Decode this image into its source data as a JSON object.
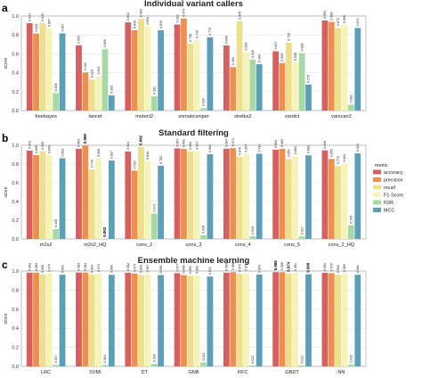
{
  "legend": {
    "title": "metric",
    "entries": [
      {
        "label": "accuracy",
        "color": "#d65f5f"
      },
      {
        "label": "precision",
        "color": "#ee8f4e"
      },
      {
        "label": "recall",
        "color": "#eedf8c"
      },
      {
        "label": "F1-Score",
        "color": "#f4f3b8"
      },
      {
        "label": "FDR",
        "color": "#a7d9a7"
      },
      {
        "label": "MCC",
        "color": "#5c9fb8"
      }
    ]
  },
  "chart_data": [
    {
      "type": "bar",
      "panel_label": "a",
      "title": "Individual variant callers",
      "ylabel": "score",
      "ylim": [
        0,
        1.0
      ],
      "yticks": [
        "0.0",
        "0.2",
        "0.4",
        "0.6",
        "0.8",
        "1.0"
      ],
      "categories": [
        "freebayes",
        "lancet",
        "mutect2",
        "somaticsniper",
        "strelka2",
        "vardict",
        "varscan2"
      ],
      "series": [
        {
          "name": "accuracy",
          "values": [
            0.924,
            0.691,
            0.933,
            0.91,
            0.69,
            0.627,
            0.953
          ],
          "labels": [
            "0.924",
            "0.691",
            "0.933",
            "0.910",
            "0.690",
            "0.627",
            "0.953"
          ]
        },
        {
          "name": "precision",
          "values": [
            0.815,
            0.403,
            0.849,
            0.974,
            0.46,
            0.503,
            0.938
          ],
          "labels": [
            "0.815",
            "0.403",
            "0.849",
            "0.974",
            "0.460",
            "0.503",
            "0.938"
          ]
        },
        {
          "name": "recall",
          "values": [
            0.925,
            0.328,
            0.969,
            0.708,
            0.945,
            0.719,
            0.875
          ],
          "labels": [
            "0.925",
            "0.328",
            "0.969",
            "0.708",
            "0.945",
            "0.719",
            "0.875"
          ]
        },
        {
          "name": "F1-Score",
          "values": [
            0.867,
            0.363,
            0.891,
            0.745,
            0.618,
            0.508,
            0.905
          ],
          "labels": [
            "0.867",
            "0.363",
            "0.891",
            "0.745",
            "0.618",
            "0.508",
            "0.905"
          ]
        },
        {
          "name": "FDR",
          "values": [
            0.185,
            0.65,
            0.152,
            0.026,
            0.54,
            0.608,
            0.062
          ],
          "labels": [
            "0.185",
            "0.650",
            "0.152",
            "0.026",
            "0.540",
            "0.608",
            "0.062"
          ]
        },
        {
          "name": "MCC",
          "values": [
            0.817,
            0.16,
            0.849,
            0.776,
            0.49,
            0.275,
            0.874
          ],
          "labels": [
            "0.817",
            "0.160",
            "0.849",
            "0.776",
            "0.490",
            "0.275",
            "0.874"
          ]
        }
      ]
    },
    {
      "type": "bar",
      "panel_label": "b",
      "title": "Standard filtering",
      "ylabel": "score",
      "ylim": [
        0,
        1.0
      ],
      "yticks": [
        "0.0",
        "0.2",
        "0.4",
        "0.6",
        "0.8",
        "1.0"
      ],
      "categories": [
        "m2s2",
        "m2s2_HQ",
        "cons_2",
        "cons_3",
        "cons_4",
        "cons_5",
        "cons_2_HQ"
      ],
      "bold_labels": [
        [
          "m2s2_HQ",
          "precision"
        ],
        [
          "m2s2_HQ",
          "FDR"
        ],
        [
          "cons_2",
          "recall"
        ]
      ],
      "series": [
        {
          "name": "accuracy",
          "values": [
            0.943,
            0.963,
            0.934,
            0.967,
            0.964,
            0.954,
            0.946
          ],
          "labels": [
            "0.943",
            "0.963",
            "0.934",
            "0.967",
            "0.964",
            "0.954",
            "0.946"
          ]
        },
        {
          "name": "precision",
          "values": [
            0.895,
            0.998,
            0.729,
            0.961,
            0.971,
            0.963,
            0.855
          ],
          "labels": [
            "0.895",
            "0.998",
            "0.729",
            "0.961",
            "0.971",
            "0.963",
            "0.855"
          ]
        },
        {
          "name": "recall",
          "values": [
            0.935,
            0.74,
            0.982,
            0.933,
            0.876,
            0.854,
            0.779
          ],
          "labels": [
            "0.935",
            "0.740",
            "0.982",
            "0.933",
            "0.876",
            "0.854",
            "0.779"
          ]
        },
        {
          "name": "F1-Score",
          "values": [
            0.894,
            0.858,
            0.83,
            0.937,
            0.907,
            0.883,
            0.804
          ],
          "labels": [
            "0.894",
            "0.858",
            "0.830",
            "0.937",
            "0.907",
            "0.883",
            "0.804"
          ]
        },
        {
          "name": "FDR",
          "values": [
            0.105,
            0.002,
            0.271,
            0.039,
            0.029,
            0.027,
            0.145
          ],
          "labels": [
            "0.105",
            "0.002",
            "0.271",
            "0.039",
            "0.029",
            "0.027",
            "0.145"
          ]
        },
        {
          "name": "MCC",
          "values": [
            0.862,
            0.837,
            0.782,
            0.904,
            0.91,
            0.893,
            0.913
          ],
          "labels": [
            "0.862",
            "0.837",
            "0.782",
            "0.904",
            "0.910",
            "0.893",
            "0.913"
          ]
        }
      ]
    },
    {
      "type": "bar",
      "panel_label": "c",
      "title": "Ensemble machine learning",
      "ylabel": "score",
      "ylim": [
        0,
        1.0
      ],
      "yticks": [
        "0.0",
        "0.2",
        "0.4",
        "0.6",
        "0.8",
        "1.0"
      ],
      "categories": [
        "LRC",
        "SVMI",
        "DT",
        "GNB",
        "RFC",
        "GBDT",
        "NN"
      ],
      "bold_labels": [
        [
          "GBDT",
          "accuracy"
        ],
        [
          "GBDT",
          "recall"
        ],
        [
          "GBDT",
          "MCC"
        ]
      ],
      "series": [
        {
          "name": "accuracy",
          "values": [
            0.983,
            0.984,
            0.982,
            0.977,
            0.983,
            0.988,
            0.981
          ],
          "labels": [
            "0.983",
            "0.984",
            "0.982",
            "0.977",
            "0.983",
            "0.988",
            "0.981"
          ]
        },
        {
          "name": "precision",
          "values": [
            0.983,
            0.984,
            0.974,
            0.958,
            0.988,
            0.988,
            0.978
          ],
          "labels": [
            "0.983",
            "0.984",
            "0.974",
            "0.958",
            "0.988",
            "0.988",
            "0.978"
          ]
        },
        {
          "name": "recall",
          "values": [
            0.965,
            0.964,
            0.96,
            0.95,
            0.97,
            0.974,
            0.96
          ],
          "labels": [
            "0.965",
            "0.964",
            "0.960",
            "0.950",
            "0.970",
            "0.974",
            "0.960"
          ]
        },
        {
          "name": "F1-Score",
          "values": [
            0.974,
            0.972,
            0.967,
            0.954,
            0.979,
            0.981,
            0.969
          ],
          "labels": [
            "0.974",
            "0.972",
            "0.967",
            "0.954",
            "0.979",
            "0.981",
            "0.969"
          ]
        },
        {
          "name": "FDR",
          "values": [
            0.017,
            0.016,
            0.026,
            0.042,
            0.012,
            0.012,
            0.022
          ],
          "labels": [
            "0.017",
            "0.016",
            "0.026",
            "0.042",
            "0.012",
            "0.012",
            "0.022"
          ]
        },
        {
          "name": "MCC",
          "values": [
            0.961,
            0.96,
            0.958,
            0.942,
            0.963,
            0.966,
            0.961
          ],
          "labels": [
            "0.961",
            "0.960",
            "0.958",
            "0.942",
            "0.963",
            "0.966",
            "0.961"
          ]
        }
      ]
    }
  ]
}
